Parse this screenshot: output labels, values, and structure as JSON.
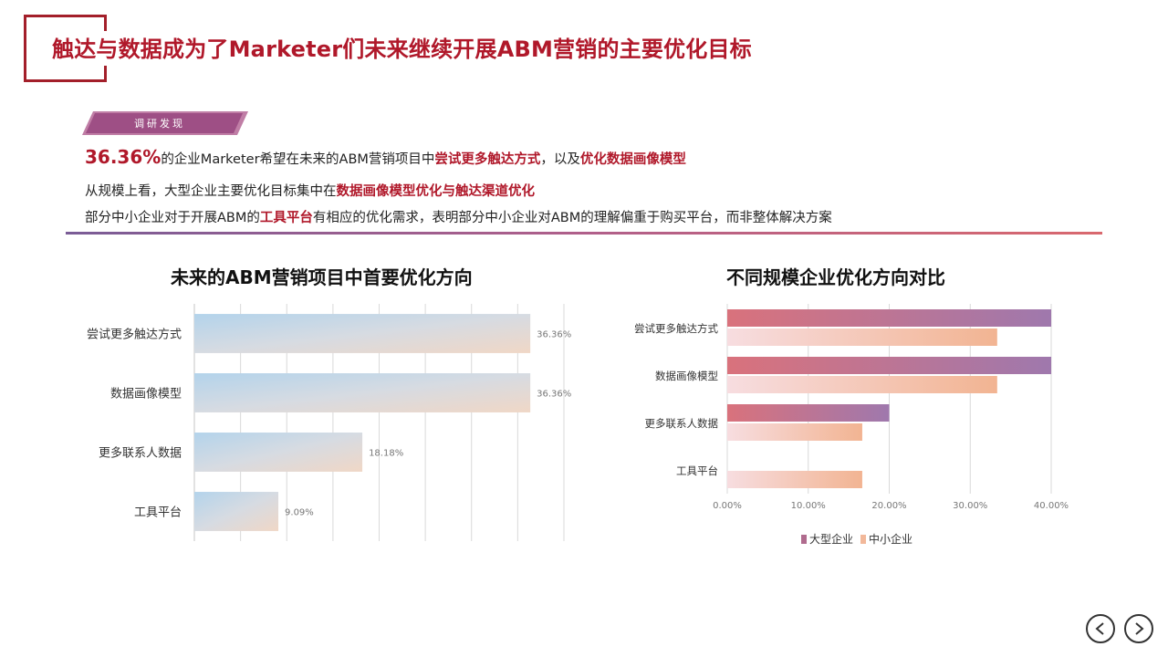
{
  "header": {
    "title": "触达与数据成为了Marketer们未来继续开展ABM营销的主要优化目标"
  },
  "tag": {
    "label": "调研发现"
  },
  "findings": {
    "line1": {
      "pct": "36.36%",
      "t1": "的企业Marketer希望在未来的ABM营销项目中",
      "h1": "尝试更多触达方式",
      "t2": "，以及",
      "h2": "优化数据画像模型"
    },
    "line2": {
      "t1": "从规模上看，大型企业主要优化目标集中在",
      "h1": "数据画像模型优化与触达渠道优化"
    },
    "line3": {
      "t1": "部分中小企业对于开展ABM的",
      "h1": "工具平台",
      "t2": "有相应的优化需求，表明部分中小企业对ABM的理解偏重于购买平台，而非整体解决方案"
    }
  },
  "colors": {
    "accent": "#b0182a",
    "large": "#b06b8e",
    "sme": "#f2b89a"
  },
  "chart_data": [
    {
      "type": "bar",
      "orientation": "horizontal",
      "title": "未来的ABM营销项目中首要优化方向",
      "categories": [
        "尝试更多触达方式",
        "数据画像模型",
        "更多联系人数据",
        "工具平台"
      ],
      "values": [
        36.36,
        36.36,
        18.18,
        9.09
      ],
      "value_labels": [
        "36.36%",
        "36.36%",
        "18.18%",
        "9.09%"
      ],
      "xlim": [
        0,
        40
      ],
      "grid": true
    },
    {
      "type": "bar",
      "orientation": "horizontal",
      "title": "不同规模企业优化方向对比",
      "categories": [
        "尝试更多触达方式",
        "数据画像模型",
        "更多联系人数据",
        "工具平台"
      ],
      "series": [
        {
          "name": "大型企业",
          "values": [
            40.0,
            40.0,
            20.0,
            0
          ]
        },
        {
          "name": "中小企业",
          "values": [
            33.33,
            33.33,
            16.67,
            16.67
          ]
        }
      ],
      "ticks": [
        "0.00%",
        "10.00%",
        "20.00%",
        "30.00%",
        "40.00%"
      ],
      "xlim": [
        0,
        40
      ],
      "legend": "bottom",
      "grid": true
    }
  ],
  "nav": {
    "prev": "chevron-left-icon",
    "next": "chevron-right-icon"
  }
}
